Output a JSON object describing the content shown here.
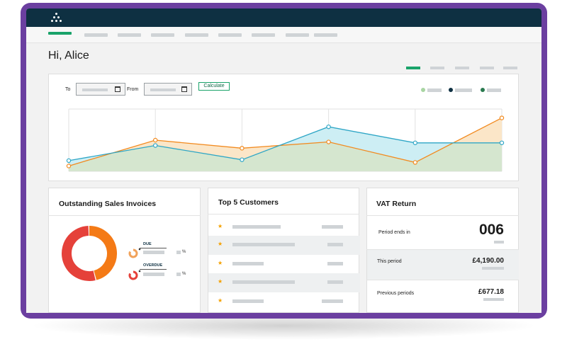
{
  "header": {
    "greeting": "Hi, Alice"
  },
  "icons": {
    "logo": "logo-icon",
    "calendar": "calendar-icon",
    "star": "star-icon"
  },
  "filters": {
    "to_label": "To",
    "from_label": "From",
    "calculate_label": "Calculate"
  },
  "colors": {
    "brand_dark": "#0e3042",
    "accent_green": "#1aa36a",
    "frame_purple": "#6b3fa0",
    "series_orange": "#f28a1f",
    "series_blue": "#2ea6c6",
    "legend_light_green": "#a8d5a2",
    "legend_dark": "#0e3042",
    "legend_green": "#2a7a4f",
    "donut_red": "#e5413a",
    "donut_orange": "#f47a16",
    "star": "#f4a100"
  },
  "chart_data": {
    "type": "area",
    "x": [
      1,
      2,
      3,
      4,
      5,
      6
    ],
    "series": [
      {
        "values": [
          6,
          35,
          26,
          33,
          10,
          60
        ]
      },
      {
        "values": [
          12,
          29,
          13,
          50,
          32,
          32
        ]
      }
    ],
    "ylim": [
      0,
      70
    ],
    "grid": true
  },
  "panels": {
    "invoices": {
      "title": "Outstanding Sales Invoices",
      "due_label": "DUE",
      "overdue_label": "OVERDUE",
      "percent_symbol": "%"
    },
    "customers": {
      "title": "Top 5 Customers",
      "rows": 5
    },
    "vat": {
      "title": "VAT Return",
      "period_ends_label": "Period ends in",
      "period_ends_value": "006",
      "this_period_label": "This period",
      "this_period_value": "£4,190.00",
      "previous_label": "Previous periods",
      "previous_value": "£677.18"
    }
  }
}
